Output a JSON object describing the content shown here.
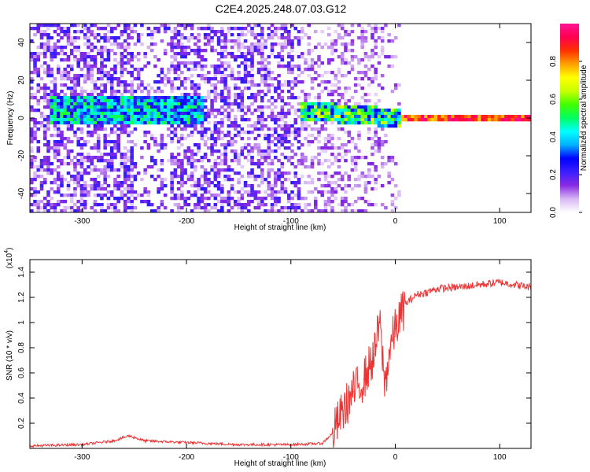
{
  "title": "C2E4.2025.248.07.03.G12",
  "chart_data": [
    {
      "type": "heatmap",
      "name": "spectrogram",
      "xlabel": "Height of straight line (km)",
      "ylabel": "Frequency (Hz)",
      "xlim": [
        -350,
        130
      ],
      "ylim": [
        -50,
        50
      ],
      "xticks": [
        -300,
        -200,
        -100,
        0,
        100
      ],
      "yticks": [
        -40,
        -20,
        0,
        20,
        40
      ],
      "xtick_labels": [
        "-300",
        "-200",
        "-100",
        "0",
        "100"
      ],
      "ytick_labels": [
        "-40",
        "-20",
        "0",
        "20",
        "40"
      ],
      "description_values": {
        "band_center_hz": 4,
        "strong_line_start_km": 5,
        "strong_line_end_km": 130,
        "strong_line_freq_hz": 0,
        "noise_gap_km": [
          -90,
          130
        ]
      },
      "colorbar": {
        "label": "Normalized spectral amplitude",
        "range": [
          0,
          1
        ],
        "ticks": [
          0.0,
          0.2,
          0.4,
          0.6,
          0.8
        ],
        "tick_labels": [
          "0.0",
          "0.2",
          "0.4",
          "0.6",
          "0.8"
        ],
        "colors": [
          "#ffffff",
          "#d9b8f5",
          "#8a2be2",
          "#3b1fff",
          "#0000ff",
          "#00b0ff",
          "#00ffff",
          "#00ff60",
          "#40ff00",
          "#c8ff00",
          "#ffff00",
          "#ffa000",
          "#ff3000",
          "#ff0050",
          "#ff1493"
        ]
      }
    },
    {
      "type": "line",
      "name": "snr",
      "xlabel": "Height of straight line (km)",
      "ylabel": "SNR (10 * v/v)",
      "scale_label": "(x10",
      "scale_exponent": "4",
      "xlim": [
        -350,
        130
      ],
      "ylim": [
        0,
        1.5
      ],
      "xticks": [
        -300,
        -200,
        -100,
        0,
        100
      ],
      "yticks": [
        0.2,
        0.4,
        0.6,
        0.8,
        1.0,
        1.2,
        1.4
      ],
      "xtick_labels": [
        "-300",
        "-200",
        "-100",
        "0",
        "100"
      ],
      "ytick_labels": [
        "0.2",
        "0.4",
        "0.6",
        "0.8",
        "1",
        "1.2",
        "1.4"
      ],
      "color": "#ee3333",
      "series": [
        {
          "name": "SNR",
          "x": [
            -350,
            -300,
            -270,
            -255,
            -240,
            -210,
            -150,
            -100,
            -70,
            -60,
            -50,
            -40,
            -30,
            -20,
            -15,
            -10,
            -5,
            0,
            5,
            10,
            20,
            30,
            40,
            60,
            80,
            100,
            130
          ],
          "y": [
            0.02,
            0.03,
            0.06,
            0.1,
            0.06,
            0.05,
            0.03,
            0.03,
            0.04,
            0.12,
            0.3,
            0.45,
            0.55,
            0.75,
            1.0,
            0.5,
            0.8,
            0.95,
            1.05,
            1.15,
            1.22,
            1.24,
            1.27,
            1.28,
            1.3,
            1.32,
            1.28
          ]
        }
      ]
    }
  ]
}
